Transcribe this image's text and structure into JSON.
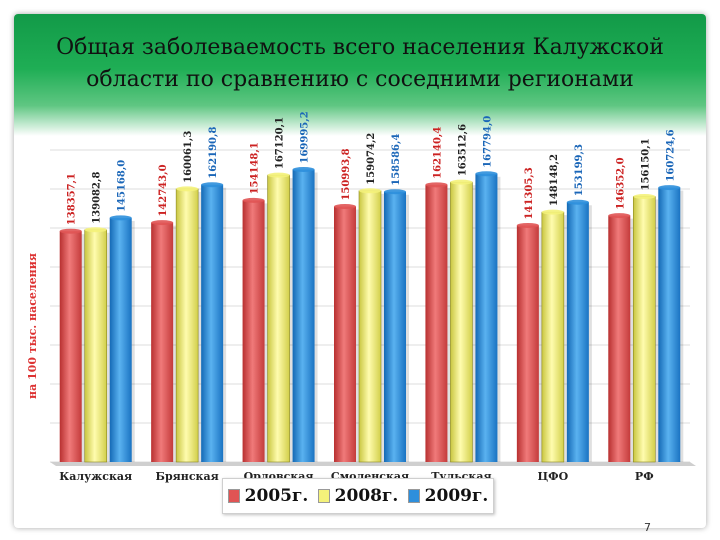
{
  "title_line1": "Общая заболеваемость всего населения Калужской",
  "title_line2": "области по сравнению с соседними регионами",
  "page_number": "7",
  "chart_data": {
    "type": "bar",
    "ylabel": "на 100 тыс. населения",
    "grid": true,
    "legend_position": "bottom",
    "categories": [
      "Калужская",
      "Брянская",
      "Орловская",
      "Смоленская",
      "Тульская",
      "ЦФО",
      "РФ"
    ],
    "series": [
      {
        "name": "2005г.",
        "color": "#e05454",
        "values": [
          138357.1,
          142743.0,
          154148.1,
          150993.8,
          162140.4,
          141305.3,
          146352.0
        ],
        "labels": [
          "138357,1",
          "142743,0",
          "154148,1",
          "150993,8",
          "162140,4",
          "141305,3",
          "146352,0"
        ]
      },
      {
        "name": "2008г.",
        "color": "#f4f27a",
        "values": [
          139082.8,
          160061.3,
          167120.1,
          159074.2,
          163512.6,
          148148.2,
          156150.1
        ],
        "labels": [
          "139082,8",
          "160061,3",
          "167120,1",
          "159074,2",
          "163512,6",
          "148148,2",
          "156150,1"
        ]
      },
      {
        "name": "2009г.",
        "color": "#2e8fdc",
        "values": [
          145168.0,
          162190.8,
          169995.2,
          158586.4,
          167794.0,
          153199.3,
          160724.6
        ],
        "labels": [
          "145168,0",
          "162190,8",
          "169995,2",
          "158586,4",
          "167794,0",
          "153199,3",
          "160724,6"
        ]
      }
    ]
  }
}
